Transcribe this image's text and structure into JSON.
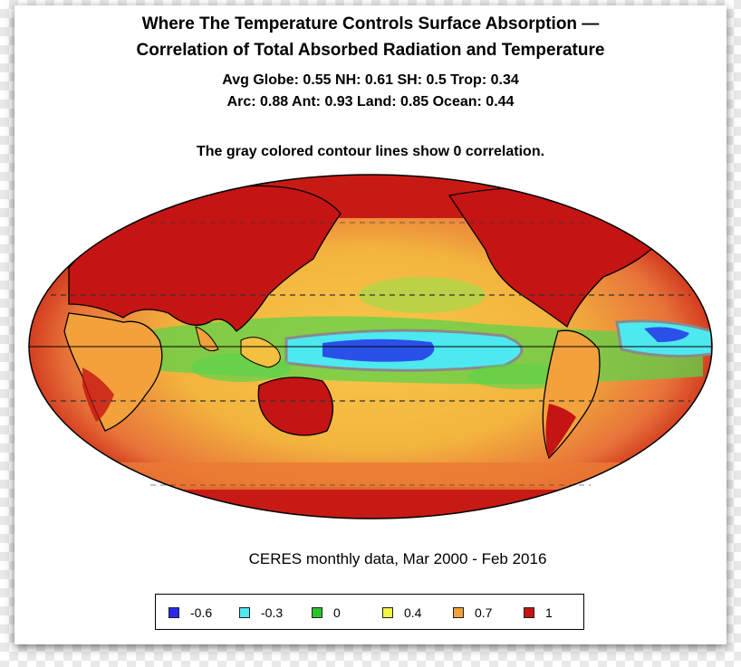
{
  "title_line1": "Where The Temperature Controls Surface Absorption —",
  "title_line2": "Correlation of Total Absorbed Radiation and Temperature",
  "stats_line1": "Avg Globe: 0.55  NH: 0.61  SH: 0.5  Trop: 0.34",
  "stats_line2": "Arc: 0.88  Ant: 0.93  Land: 0.85 Ocean: 0.44",
  "stats": {
    "avg_globe": 0.55,
    "nh": 0.61,
    "sh": 0.5,
    "trop": 0.34,
    "arc": 0.88,
    "ant": 0.93,
    "land": 0.85,
    "ocean": 0.44
  },
  "note": "The gray colored contour lines show 0 correlation.",
  "source": "CERES monthly data, Mar 2000 - Feb 2016",
  "projection": "mollweide",
  "legend": [
    {
      "label": "-0.6",
      "color": "#2a2ae8"
    },
    {
      "label": "-0.3",
      "color": "#4ee8f0"
    },
    {
      "label": "0",
      "color": "#2ec22e"
    },
    {
      "label": "0.4",
      "color": "#f4f442"
    },
    {
      "label": "0.7",
      "color": "#f2a13c"
    },
    {
      "label": "1",
      "color": "#c41414"
    }
  ]
}
